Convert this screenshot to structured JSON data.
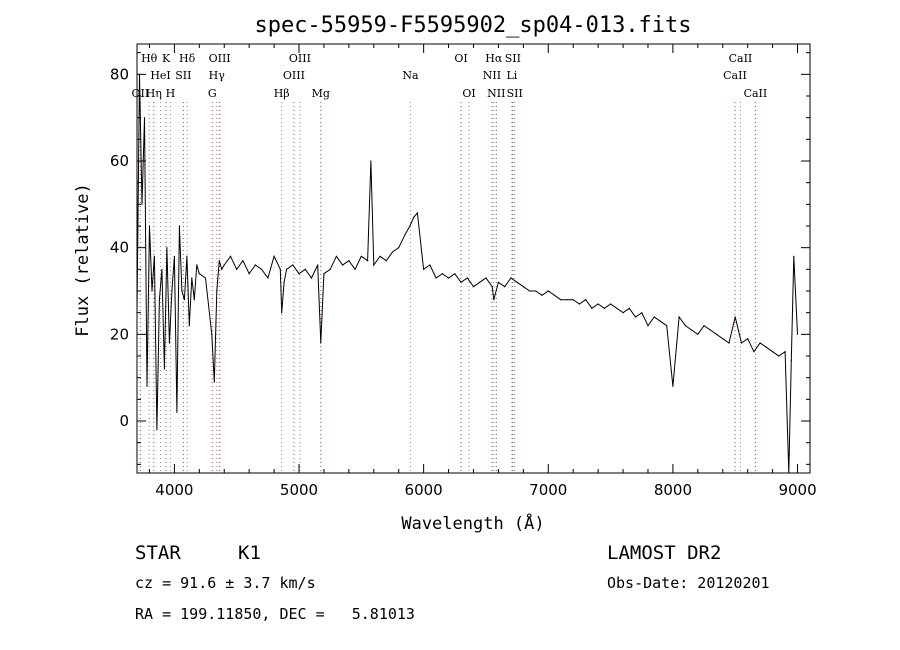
{
  "chart_data": {
    "type": "line",
    "title": "spec-55959-F5595902_sp04-013.fits",
    "xlabel": "Wavelength (Å)",
    "ylabel": "Flux (relative)",
    "xlim": [
      3700,
      9100
    ],
    "ylim": [
      -12,
      87
    ],
    "xticks": [
      4000,
      5000,
      6000,
      7000,
      8000,
      9000
    ],
    "yticks": [
      0,
      20,
      40,
      60,
      80
    ],
    "grid": false,
    "series": [
      {
        "color": "#000000",
        "x": [
          3700,
          3720,
          3740,
          3760,
          3780,
          3800,
          3820,
          3840,
          3860,
          3880,
          3900,
          3920,
          3940,
          3960,
          3980,
          4000,
          4020,
          4040,
          4060,
          4080,
          4100,
          4120,
          4140,
          4160,
          4180,
          4200,
          4250,
          4300,
          4320,
          4340,
          4360,
          4380,
          4400,
          4450,
          4500,
          4550,
          4600,
          4650,
          4700,
          4750,
          4800,
          4850,
          4861,
          4880,
          4900,
          4950,
          5000,
          5050,
          5100,
          5150,
          5175,
          5200,
          5250,
          5300,
          5350,
          5400,
          5450,
          5500,
          5550,
          5577,
          5600,
          5650,
          5700,
          5750,
          5800,
          5850,
          5890,
          5920,
          5950,
          6000,
          6050,
          6100,
          6150,
          6200,
          6250,
          6300,
          6350,
          6400,
          6450,
          6500,
          6550,
          6563,
          6600,
          6650,
          6700,
          6750,
          6800,
          6850,
          6900,
          6950,
          7000,
          7050,
          7100,
          7150,
          7200,
          7250,
          7300,
          7350,
          7400,
          7450,
          7500,
          7550,
          7600,
          7650,
          7700,
          7750,
          7800,
          7850,
          7900,
          7950,
          8000,
          8050,
          8100,
          8150,
          8200,
          8250,
          8300,
          8350,
          8400,
          8450,
          8500,
          8550,
          8600,
          8650,
          8700,
          8750,
          8800,
          8850,
          8900,
          8930,
          8950,
          8970,
          9000
        ],
        "values": [
          25,
          80,
          50,
          70,
          8,
          45,
          30,
          38,
          -2,
          28,
          35,
          12,
          40,
          18,
          30,
          38,
          2,
          45,
          30,
          28,
          38,
          22,
          33,
          28,
          36,
          34,
          33,
          20,
          9,
          30,
          37,
          35,
          36,
          38,
          35,
          37,
          34,
          36,
          35,
          33,
          38,
          35,
          25,
          32,
          35,
          36,
          34,
          35,
          33,
          36,
          18,
          34,
          35,
          38,
          36,
          37,
          35,
          38,
          37,
          60,
          36,
          38,
          37,
          39,
          40,
          43,
          45,
          47,
          48,
          35,
          36,
          33,
          34,
          33,
          34,
          32,
          33,
          31,
          32,
          33,
          31,
          28,
          32,
          31,
          33,
          32,
          31,
          30,
          30,
          29,
          30,
          29,
          28,
          28,
          28,
          27,
          28,
          26,
          27,
          26,
          27,
          26,
          25,
          26,
          24,
          25,
          22,
          24,
          23,
          22,
          8,
          24,
          22,
          21,
          20,
          22,
          21,
          20,
          19,
          18,
          24,
          18,
          19,
          16,
          18,
          17,
          16,
          15,
          16,
          -12,
          14,
          38,
          20
        ]
      }
    ],
    "lines": [
      {
        "name": "OII",
        "x": 3727,
        "row": 2
      },
      {
        "name": "Hθ",
        "x": 3798,
        "row": 0
      },
      {
        "name": "Hη",
        "x": 3835,
        "row": 2
      },
      {
        "name": "HeI",
        "x": 3889,
        "row": 1
      },
      {
        "name": "K",
        "x": 3934,
        "row": 0
      },
      {
        "name": "H",
        "x": 3968,
        "row": 2
      },
      {
        "name": "SII",
        "x": 4072,
        "row": 1
      },
      {
        "name": "Hδ",
        "x": 4102,
        "row": 0
      },
      {
        "name": "G",
        "x": 4304,
        "row": 2
      },
      {
        "name": "Hγ",
        "x": 4340,
        "row": 1
      },
      {
        "name": "OIII",
        "x": 4363,
        "row": 0
      },
      {
        "name": "Hβ",
        "x": 4861,
        "row": 2
      },
      {
        "name": "OIII",
        "x": 4959,
        "row": 1
      },
      {
        "name": "OIII",
        "x": 5007,
        "row": 0
      },
      {
        "name": "Mg",
        "x": 5175,
        "row": 2
      },
      {
        "name": "Na",
        "x": 5894,
        "row": 1
      },
      {
        "name": "OI",
        "x": 6300,
        "row": 0
      },
      {
        "name": "OI",
        "x": 6364,
        "row": 2
      },
      {
        "name": "NII",
        "x": 6548,
        "row": 1
      },
      {
        "name": "Hα",
        "x": 6563,
        "row": 0
      },
      {
        "name": "NII",
        "x": 6583,
        "row": 2
      },
      {
        "name": "Li",
        "x": 6708,
        "row": 1
      },
      {
        "name": "SII",
        "x": 6716,
        "row": 0
      },
      {
        "name": "SII",
        "x": 6731,
        "row": 2
      },
      {
        "name": "CaII",
        "x": 8498,
        "row": 1
      },
      {
        "name": "CaII",
        "x": 8542,
        "row": 0
      },
      {
        "name": "CaII",
        "x": 8662,
        "row": 2
      }
    ]
  },
  "info": {
    "class_label": "STAR",
    "subclass": "K1",
    "survey": "LAMOST DR2",
    "cz": "cz = 91.6 ± 3.7 km/s",
    "obs_date": "Obs-Date: 20120201",
    "coords": "RA = 199.11850, DEC =   5.81013"
  },
  "colors": {
    "ink": "#000000",
    "background": "#ffffff",
    "line_marker_red": "#cc3333",
    "line_marker_grey": "#888888"
  }
}
